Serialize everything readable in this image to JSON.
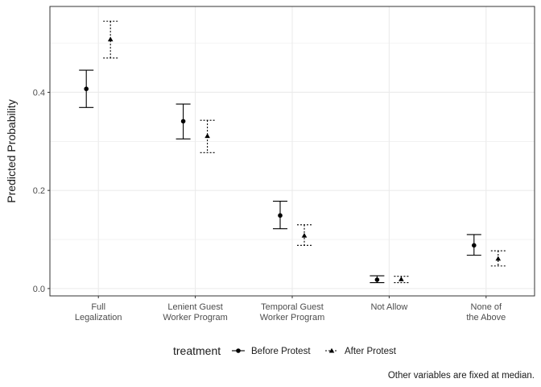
{
  "chart_data": {
    "type": "scatter",
    "subtype": "point-with-error-bars",
    "categories": [
      [
        "Full",
        "Legalization"
      ],
      [
        "Lenient Guest",
        "Worker Program"
      ],
      [
        "Temporal Guest",
        "Worker Program"
      ],
      [
        "Not Allow"
      ],
      [
        "None of",
        "the Above"
      ]
    ],
    "ylabel": "Predicted Probability",
    "xlabel": "",
    "ylim": [
      -0.015,
      0.575
    ],
    "yticks": [
      0.0,
      0.2,
      0.4
    ],
    "ytick_labels": [
      "0.0",
      "0.2",
      "0.4"
    ],
    "grid": true,
    "legend": {
      "title": "treatment",
      "position": "bottom",
      "entries": [
        "Before Protest",
        "After Protest"
      ]
    },
    "caption": "Other variables are fixed at median.",
    "series": [
      {
        "name": "Before Protest",
        "marker": "circle",
        "linestyle": "solid",
        "values": [
          0.407,
          0.341,
          0.149,
          0.018,
          0.088
        ],
        "lower": [
          0.369,
          0.305,
          0.122,
          0.012,
          0.068
        ],
        "upper": [
          0.445,
          0.376,
          0.178,
          0.026,
          0.11
        ]
      },
      {
        "name": "After Protest",
        "marker": "triangle",
        "linestyle": "dotted",
        "values": [
          0.508,
          0.311,
          0.108,
          0.019,
          0.061
        ],
        "lower": [
          0.47,
          0.277,
          0.088,
          0.012,
          0.046
        ],
        "upper": [
          0.545,
          0.343,
          0.13,
          0.025,
          0.077
        ]
      }
    ],
    "colors": {
      "line": "#000000",
      "grid": "#ebebeb",
      "panel_border": "#333333",
      "tick_text": "#4d4d4d"
    }
  }
}
